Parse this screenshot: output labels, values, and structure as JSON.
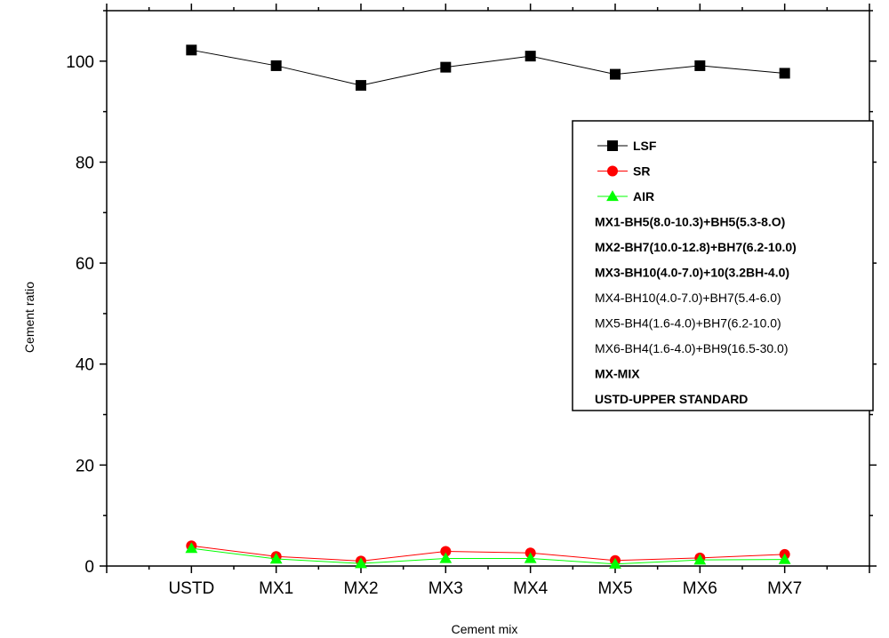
{
  "chart_data": {
    "type": "line",
    "categories": [
      "USTD",
      "MX1",
      "MX2",
      "MX3",
      "MX4",
      "MX5",
      "MX6",
      "MX7"
    ],
    "xlabel": "Cement mix",
    "ylabel": "Cement ratio",
    "ylim": [
      0,
      110
    ],
    "yticks": [
      "0",
      "20",
      "40",
      "60",
      "80",
      "100"
    ],
    "grid": false,
    "legend_position": "right",
    "series": [
      {
        "name": "LSF",
        "color": "#000000",
        "marker": "square",
        "values": [
          102.2,
          99.1,
          95.2,
          98.8,
          101.0,
          97.4,
          99.1,
          97.6
        ]
      },
      {
        "name": "SR",
        "color": "#ff0000",
        "marker": "circle",
        "values": [
          4.0,
          1.9,
          1.0,
          2.9,
          2.6,
          1.1,
          1.6,
          2.3
        ]
      },
      {
        "name": "AIR",
        "color": "#00ff00",
        "marker": "triangle",
        "values": [
          3.5,
          1.4,
          0.5,
          1.5,
          1.5,
          0.4,
          1.2,
          1.3
        ]
      }
    ],
    "legend_notes": [
      {
        "text": "MX1-BH5(8.0-10.3)+BH5(5.3-8.O)",
        "bold": true
      },
      {
        "text": "MX2-BH7(10.0-12.8)+BH7(6.2-10.0)",
        "bold": true
      },
      {
        "text": "MX3-BH10(4.0-7.0)+10(3.2BH-4.0)",
        "bold": true
      },
      {
        "text": "MX4-BH10(4.0-7.0)+BH7(5.4-6.0)",
        "bold": false
      },
      {
        "text": "MX5-BH4(1.6-4.0)+BH7(6.2-10.0)",
        "bold": false
      },
      {
        "text": "MX6-BH4(1.6-4.0)+BH9(16.5-30.0)",
        "bold": false
      },
      {
        "text": "MX-MIX",
        "bold": true
      },
      {
        "text": "USTD-UPPER STANDARD",
        "bold": true
      }
    ]
  }
}
